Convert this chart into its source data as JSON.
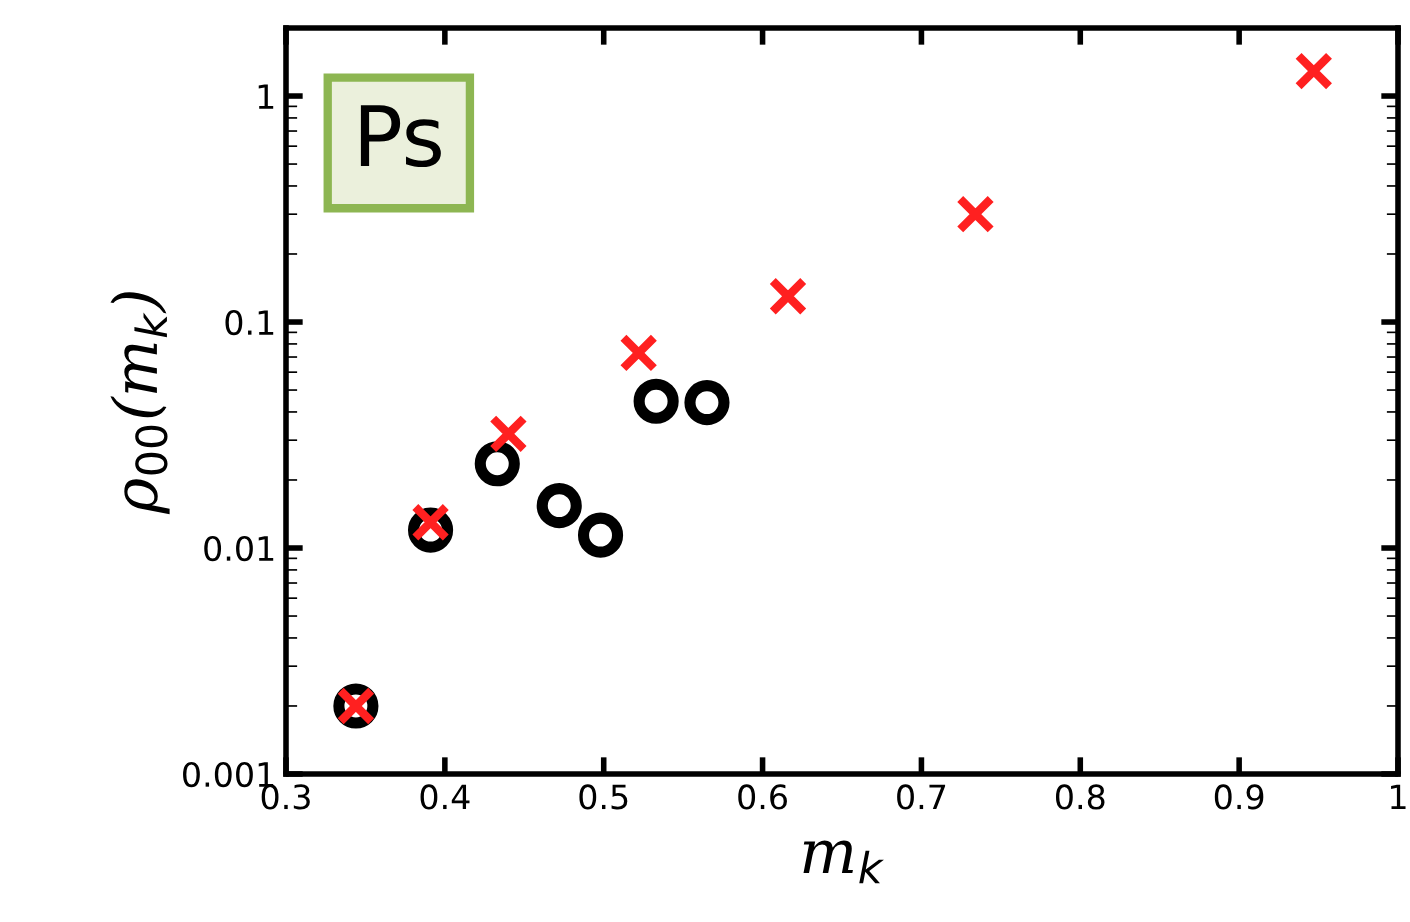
{
  "chart_data": {
    "type": "scatter",
    "xlabel": "m$_{k}$",
    "ylabel": "ρ$_{00}$(m$_{k}$)",
    "log": "y",
    "xlim": [
      0.3,
      1
    ],
    "xticks": [
      0.3,
      0.4,
      0.5,
      0.6,
      0.7,
      0.8,
      0.9,
      1
    ],
    "ylim": [
      0.001,
      2
    ],
    "yticks": [
      0.001,
      0.01,
      0.1,
      1
    ],
    "grid": false,
    "legend": false,
    "annotations": [
      "Ps"
    ],
    "series": [
      {
        "color": "#000000",
        "marker": "circle",
        "x": [
          0.344,
          0.391,
          0.433,
          0.472,
          0.498,
          0.533,
          0.565
        ],
        "values": [
          0.002,
          0.012,
          0.0236,
          0.0154,
          0.0114,
          0.0446,
          0.044
        ]
      },
      {
        "color": "#ff2020",
        "marker": "cross",
        "x": [
          0.344,
          0.391,
          0.44,
          0.522,
          0.616,
          0.734,
          0.947
        ],
        "values": [
          0.002,
          0.013,
          0.032,
          0.073,
          0.13,
          0.3,
          1.29
        ]
      }
    ]
  }
}
